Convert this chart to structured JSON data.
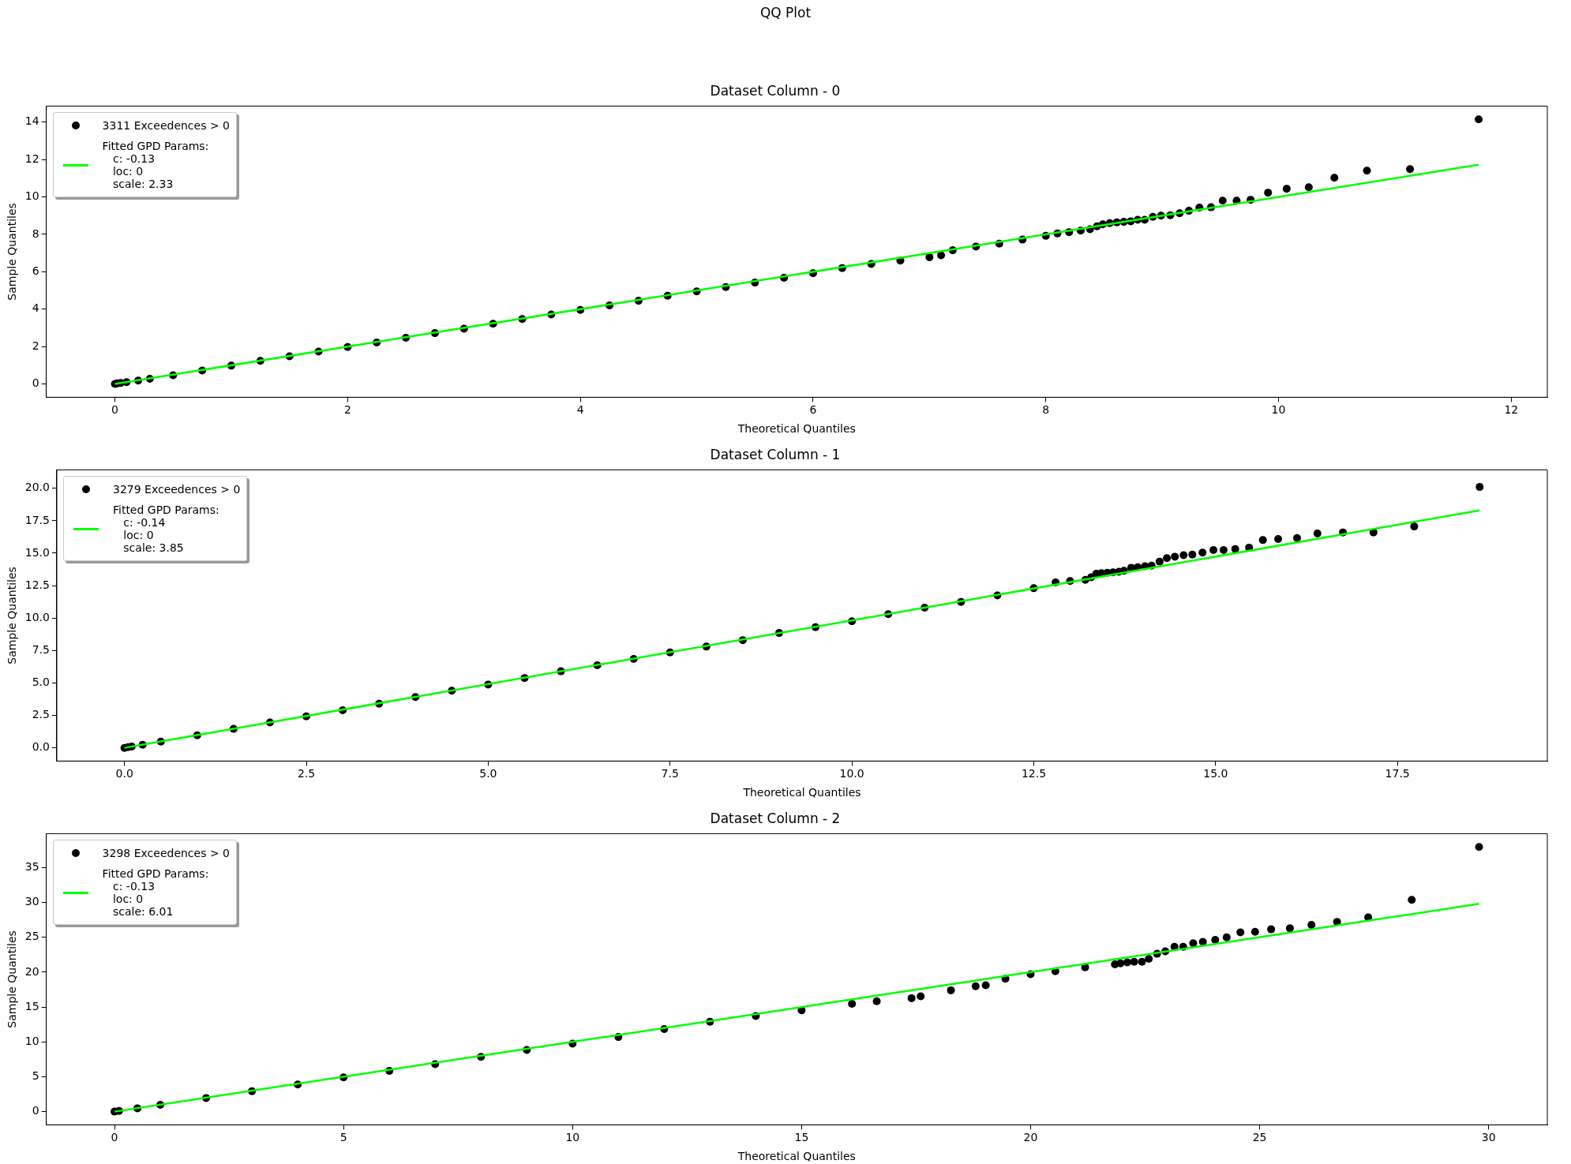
{
  "chart_data": [
    {
      "type": "scatter",
      "title": "QQ Plot",
      "subtitle": "Dataset Column - 0",
      "xlabel": "Theoretical Quantiles",
      "ylabel": "Sample Quantiles",
      "series": [
        {
          "name": "3311 Exceedences > 0",
          "color": "#000000",
          "marker": "circle",
          "x": [
            0,
            0.02,
            0.05,
            0.1,
            0.2,
            0.3,
            0.5,
            0.75,
            1,
            1.25,
            1.5,
            1.75,
            2,
            2.25,
            2.5,
            2.75,
            3,
            3.25,
            3.5,
            3.75,
            4,
            4.25,
            4.5,
            4.75,
            5,
            5.25,
            5.5,
            5.75,
            6,
            6.25,
            6.5,
            6.75,
            7,
            7.1,
            7.2,
            7.4,
            7.6,
            7.8,
            8,
            8.1,
            8.2,
            8.3,
            8.38,
            8.44,
            8.49,
            8.55,
            8.61,
            8.67,
            8.73,
            8.79,
            8.85,
            8.92,
            8.99,
            9.07,
            9.15,
            9.23,
            9.32,
            9.42,
            9.52,
            9.64,
            9.76,
            9.91,
            10.07,
            10.26,
            10.48,
            10.76,
            11.13,
            11.72
          ],
          "values": [
            0,
            0.03,
            0.06,
            0.1,
            0.18,
            0.28,
            0.47,
            0.72,
            0.98,
            1.24,
            1.48,
            1.73,
            1.98,
            2.22,
            2.47,
            2.72,
            2.96,
            3.22,
            3.47,
            3.72,
            3.96,
            4.2,
            4.45,
            4.72,
            4.95,
            5.18,
            5.42,
            5.68,
            5.92,
            6.2,
            6.42,
            6.6,
            6.78,
            6.88,
            7.15,
            7.35,
            7.5,
            7.72,
            7.92,
            8.05,
            8.12,
            8.2,
            8.27,
            8.43,
            8.54,
            8.6,
            8.64,
            8.67,
            8.7,
            8.78,
            8.78,
            8.94,
            9.0,
            9.02,
            9.13,
            9.26,
            9.43,
            9.45,
            9.8,
            9.8,
            9.85,
            10.23,
            10.44,
            10.52,
            11.03,
            11.41,
            11.49,
            14.15
          ]
        },
        {
          "name": "Fitted GPD Params:\n   c: -0.13\n   loc: 0\n   scale: 2.33",
          "color": "#00ff00",
          "type": "line",
          "x": [
            0,
            11.72
          ],
          "values": [
            0,
            11.72
          ]
        }
      ],
      "xlim": [
        -0.59,
        12.31
      ],
      "ylim": [
        -0.71,
        14.86
      ],
      "xticks": [
        0,
        2,
        4,
        6,
        8,
        10,
        12
      ],
      "yticks": [
        0,
        2,
        4,
        6,
        8,
        10,
        12,
        14
      ],
      "legend": "top left",
      "grid": false
    },
    {
      "type": "scatter",
      "title": "Dataset Column - 1",
      "xlabel": "Theoretical Quantiles",
      "ylabel": "Sample Quantiles",
      "series": [
        {
          "name": "3279 Exceedences > 0",
          "color": "#000000",
          "marker": "circle",
          "x": [
            0,
            0.05,
            0.1,
            0.25,
            0.5,
            1,
            1.5,
            2,
            2.5,
            3,
            3.5,
            4,
            4.5,
            5,
            5.5,
            6,
            6.5,
            7,
            7.5,
            8,
            8.5,
            9,
            9.5,
            10,
            10.5,
            11,
            11.5,
            12,
            12.5,
            12.8,
            13,
            13.21,
            13.29,
            13.36,
            13.43,
            13.51,
            13.59,
            13.67,
            13.74,
            13.84,
            13.93,
            14.03,
            14.12,
            14.23,
            14.33,
            14.44,
            14.56,
            14.68,
            14.82,
            14.97,
            15.11,
            15.27,
            15.46,
            15.65,
            15.86,
            16.12,
            16.4,
            16.75,
            17.17,
            17.73,
            18.63
          ],
          "values": [
            0,
            0.05,
            0.1,
            0.24,
            0.48,
            0.97,
            1.46,
            1.95,
            2.43,
            2.9,
            3.4,
            3.92,
            4.4,
            4.88,
            5.38,
            5.9,
            6.36,
            6.85,
            7.35,
            7.8,
            8.3,
            8.85,
            9.3,
            9.75,
            10.3,
            10.8,
            11.25,
            11.75,
            12.3,
            12.75,
            12.85,
            12.95,
            13.15,
            13.42,
            13.46,
            13.49,
            13.53,
            13.57,
            13.65,
            13.88,
            13.92,
            14.0,
            14.04,
            14.35,
            14.62,
            14.73,
            14.85,
            14.89,
            15.04,
            15.24,
            15.24,
            15.32,
            15.43,
            16.01,
            16.09,
            16.17,
            16.52,
            16.6,
            16.6,
            17.06,
            20.1
          ]
        },
        {
          "name": "Fitted GPD Params:\n   c: -0.14\n   loc: 0\n   scale: 3.85",
          "color": "#00ff00",
          "type": "line",
          "x": [
            0,
            18.63
          ],
          "values": [
            0,
            18.3
          ]
        }
      ],
      "xlim": [
        -0.93,
        19.56
      ],
      "ylim": [
        -1.02,
        21.42
      ],
      "xticks": [
        {
          "value": 0,
          "label": "0.0"
        },
        2.5,
        {
          "value": 5,
          "label": "5.0"
        },
        7.5,
        {
          "value": 10,
          "label": "10.0"
        },
        12.5,
        {
          "value": 15,
          "label": "15.0"
        },
        17.5
      ],
      "yticks": [
        {
          "value": 0,
          "label": "0.0"
        },
        2.5,
        {
          "value": 5,
          "label": "5.0"
        },
        7.5,
        {
          "value": 10,
          "label": "10.0"
        },
        12.5,
        {
          "value": 15,
          "label": "15.0"
        },
        17.5,
        {
          "value": 20,
          "label": "20.0"
        }
      ],
      "legend": "top left",
      "grid": false
    },
    {
      "type": "scatter",
      "title": "Dataset Column - 2",
      "xlabel": "Theoretical Quantiles",
      "ylabel": "Sample Quantiles",
      "series": [
        {
          "name": "3298 Exceedences > 0",
          "color": "#000000",
          "marker": "circle",
          "x": [
            0,
            0.1,
            0.5,
            1,
            2,
            3,
            4,
            5,
            6,
            7,
            8,
            9,
            10,
            11,
            12,
            13,
            14,
            15,
            16.1,
            16.64,
            17.4,
            17.6,
            18.26,
            18.8,
            19.02,
            19.45,
            20,
            20.54,
            21.19,
            21.84,
            21.96,
            22.11,
            22.26,
            22.43,
            22.58,
            22.76,
            22.94,
            23.14,
            23.33,
            23.55,
            23.76,
            24.03,
            24.28,
            24.58,
            24.9,
            25.25,
            25.66,
            26.13,
            26.69,
            27.37,
            28.32,
            29.79
          ],
          "values": [
            0,
            0.1,
            0.48,
            0.97,
            1.95,
            2.92,
            3.9,
            4.9,
            5.85,
            6.8,
            7.85,
            8.85,
            9.75,
            10.7,
            11.85,
            12.9,
            13.7,
            14.54,
            15.47,
            15.83,
            16.27,
            16.55,
            17.4,
            17.98,
            18.12,
            19.06,
            19.7,
            20.13,
            20.7,
            21.13,
            21.28,
            21.42,
            21.49,
            21.49,
            21.92,
            22.64,
            23.0,
            23.64,
            23.64,
            24.14,
            24.36,
            24.64,
            25.0,
            25.72,
            25.79,
            26.15,
            26.29,
            26.79,
            27.22,
            27.87,
            30.37,
            37.97
          ]
        },
        {
          "name": "Fitted GPD Params:\n   c: -0.13\n   loc: 0\n   scale: 6.01",
          "color": "#00ff00",
          "type": "line",
          "x": [
            0,
            29.79
          ],
          "values": [
            0,
            29.8
          ]
        }
      ],
      "xlim": [
        -1.49,
        31.28
      ],
      "ylim": [
        -1.9,
        39.87
      ],
      "xticks": [
        0,
        5,
        10,
        15,
        20,
        25,
        30
      ],
      "yticks": [
        0,
        5,
        10,
        15,
        20,
        25,
        30,
        35
      ],
      "legend": "top left",
      "grid": false
    }
  ]
}
